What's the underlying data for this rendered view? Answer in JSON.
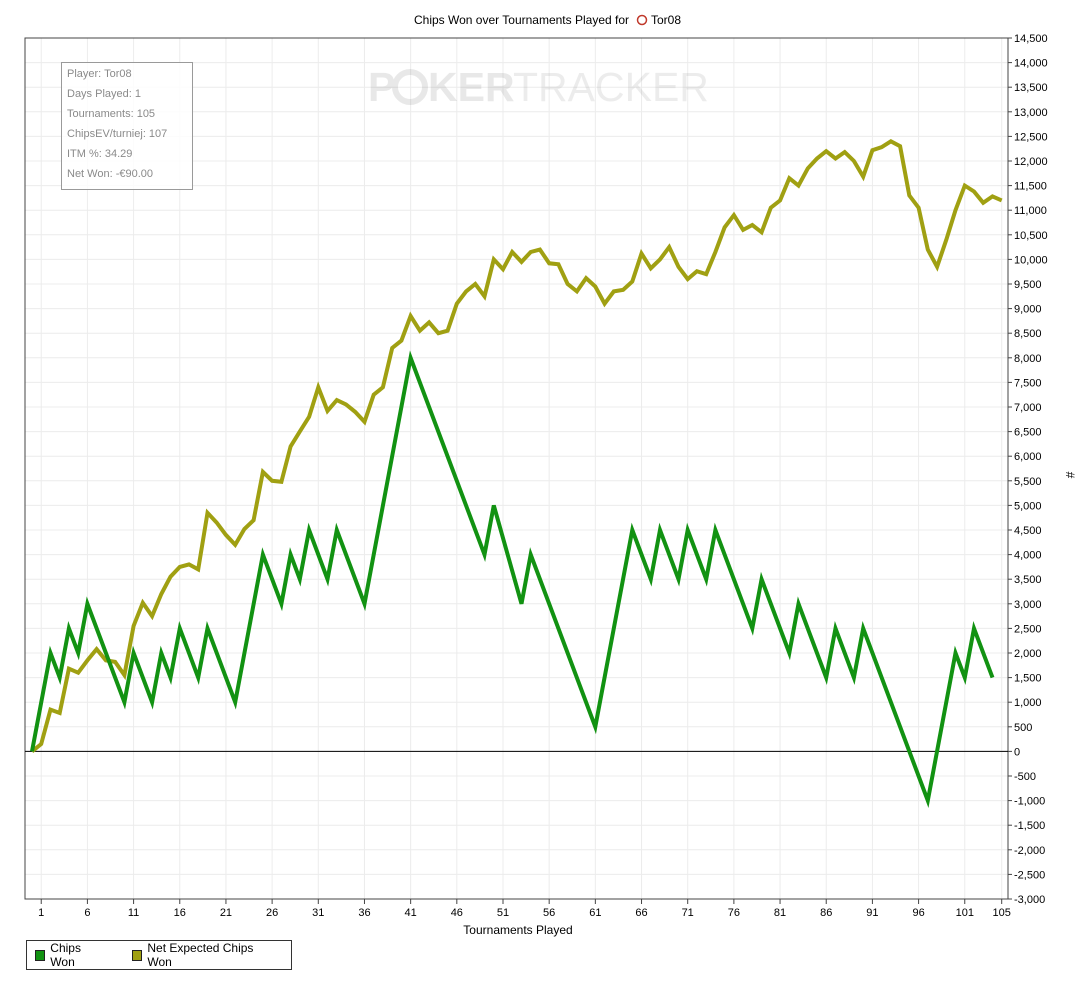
{
  "chart_data": {
    "type": "line",
    "title": "Chips Won over Tournaments Played for",
    "player": "Tor08",
    "xlabel": "Tournaments Played",
    "ylabel": "#",
    "xlim": [
      0,
      105
    ],
    "ylim": [
      -3000,
      14500
    ],
    "x_ticks": [
      1,
      6,
      11,
      16,
      21,
      26,
      31,
      36,
      41,
      46,
      51,
      56,
      61,
      66,
      71,
      76,
      81,
      86,
      91,
      96,
      101,
      105
    ],
    "y_ticks": [
      14500,
      14000,
      13500,
      13000,
      12500,
      12000,
      11500,
      11000,
      10500,
      10000,
      9500,
      9000,
      8500,
      8000,
      7500,
      7000,
      6500,
      6000,
      5500,
      5000,
      4500,
      4000,
      3500,
      3000,
      2500,
      2000,
      1500,
      1000,
      500,
      0,
      -500,
      -1000,
      -1500,
      -2000,
      -2500,
      -3000
    ],
    "y_tick_labels": [
      "14,500",
      "14,000",
      "13,500",
      "13,000",
      "12,500",
      "12,000",
      "11,500",
      "11,000",
      "10,500",
      "10,000",
      "9,500",
      "9,000",
      "8,500",
      "8,000",
      "7,500",
      "7,000",
      "6,500",
      "6,000",
      "5,500",
      "5,000",
      "4,500",
      "4,000",
      "3,500",
      "3,000",
      "2,500",
      "2,000",
      "1,500",
      "1,000",
      "500",
      "0",
      "-500",
      "-1,000",
      "-1,500",
      "-2,000",
      "-2,500",
      "-3,000"
    ],
    "grid": true,
    "legend_position": "bottom-left",
    "series": [
      {
        "name": "Chips Won",
        "color": "#129212",
        "points": [
          [
            0,
            0
          ],
          [
            2,
            2000
          ],
          [
            3,
            1500
          ],
          [
            4,
            2500
          ],
          [
            5,
            2000
          ],
          [
            6,
            3000
          ],
          [
            10,
            1000
          ],
          [
            11,
            2000
          ],
          [
            13,
            1000
          ],
          [
            14,
            2000
          ],
          [
            15,
            1500
          ],
          [
            16,
            2500
          ],
          [
            18,
            1500
          ],
          [
            19,
            2500
          ],
          [
            22,
            1000
          ],
          [
            25,
            4000
          ],
          [
            27,
            3000
          ],
          [
            28,
            4000
          ],
          [
            29,
            3500
          ],
          [
            30,
            4500
          ],
          [
            32,
            3500
          ],
          [
            33,
            4500
          ],
          [
            36,
            3000
          ],
          [
            41,
            8000
          ],
          [
            49,
            4000
          ],
          [
            50,
            5000
          ],
          [
            53,
            3000
          ],
          [
            54,
            4000
          ],
          [
            61,
            500
          ],
          [
            65,
            4500
          ],
          [
            67,
            3500
          ],
          [
            68,
            4500
          ],
          [
            70,
            3500
          ],
          [
            71,
            4500
          ],
          [
            73,
            3500
          ],
          [
            74,
            4500
          ],
          [
            78,
            2500
          ],
          [
            79,
            3500
          ],
          [
            82,
            2000
          ],
          [
            83,
            3000
          ],
          [
            86,
            1500
          ],
          [
            87,
            2500
          ],
          [
            89,
            1500
          ],
          [
            90,
            2500
          ],
          [
            97,
            -1000
          ],
          [
            100,
            2000
          ],
          [
            101,
            1500
          ],
          [
            102,
            2500
          ],
          [
            104,
            1500
          ]
        ]
      },
      {
        "name": "Net Expected Chips Won",
        "color": "#a0a012",
        "points": [
          [
            0,
            0
          ],
          [
            1,
            150
          ],
          [
            2,
            850
          ],
          [
            3,
            780
          ],
          [
            4,
            1680
          ],
          [
            5,
            1600
          ],
          [
            6,
            1850
          ],
          [
            7,
            2080
          ],
          [
            8,
            1850
          ],
          [
            9,
            1820
          ],
          [
            10,
            1550
          ],
          [
            11,
            2550
          ],
          [
            12,
            3020
          ],
          [
            13,
            2750
          ],
          [
            14,
            3200
          ],
          [
            15,
            3550
          ],
          [
            16,
            3750
          ],
          [
            17,
            3800
          ],
          [
            18,
            3700
          ],
          [
            19,
            4850
          ],
          [
            20,
            4650
          ],
          [
            21,
            4400
          ],
          [
            22,
            4200
          ],
          [
            23,
            4520
          ],
          [
            24,
            4700
          ],
          [
            25,
            5680
          ],
          [
            26,
            5500
          ],
          [
            27,
            5480
          ],
          [
            28,
            6200
          ],
          [
            29,
            6500
          ],
          [
            30,
            6800
          ],
          [
            31,
            7400
          ],
          [
            32,
            6920
          ],
          [
            33,
            7140
          ],
          [
            34,
            7050
          ],
          [
            35,
            6900
          ],
          [
            36,
            6700
          ],
          [
            37,
            7250
          ],
          [
            38,
            7400
          ],
          [
            39,
            8200
          ],
          [
            40,
            8350
          ],
          [
            41,
            8850
          ],
          [
            42,
            8550
          ],
          [
            43,
            8720
          ],
          [
            44,
            8500
          ],
          [
            45,
            8550
          ],
          [
            46,
            9100
          ],
          [
            47,
            9350
          ],
          [
            48,
            9500
          ],
          [
            49,
            9250
          ],
          [
            50,
            10000
          ],
          [
            51,
            9800
          ],
          [
            52,
            10150
          ],
          [
            53,
            9950
          ],
          [
            54,
            10150
          ],
          [
            55,
            10200
          ],
          [
            56,
            9920
          ],
          [
            57,
            9900
          ],
          [
            58,
            9500
          ],
          [
            59,
            9350
          ],
          [
            60,
            9620
          ],
          [
            61,
            9450
          ],
          [
            62,
            9100
          ],
          [
            63,
            9350
          ],
          [
            64,
            9380
          ],
          [
            65,
            9550
          ],
          [
            66,
            10120
          ],
          [
            67,
            9820
          ],
          [
            68,
            10000
          ],
          [
            69,
            10250
          ],
          [
            70,
            9850
          ],
          [
            71,
            9600
          ],
          [
            72,
            9760
          ],
          [
            73,
            9700
          ],
          [
            74,
            10150
          ],
          [
            75,
            10650
          ],
          [
            76,
            10900
          ],
          [
            77,
            10600
          ],
          [
            78,
            10700
          ],
          [
            79,
            10550
          ],
          [
            80,
            11050
          ],
          [
            81,
            11200
          ],
          [
            82,
            11650
          ],
          [
            83,
            11500
          ],
          [
            84,
            11850
          ],
          [
            85,
            12050
          ],
          [
            86,
            12200
          ],
          [
            87,
            12050
          ],
          [
            88,
            12180
          ],
          [
            89,
            12000
          ],
          [
            90,
            11680
          ],
          [
            91,
            12220
          ],
          [
            92,
            12280
          ],
          [
            93,
            12400
          ],
          [
            94,
            12300
          ],
          [
            95,
            11300
          ],
          [
            96,
            11050
          ],
          [
            97,
            10200
          ],
          [
            98,
            9850
          ],
          [
            99,
            10400
          ],
          [
            100,
            11000
          ],
          [
            101,
            11500
          ],
          [
            102,
            11380
          ],
          [
            103,
            11150
          ],
          [
            104,
            11280
          ],
          [
            105,
            11200
          ]
        ]
      }
    ]
  },
  "stats": {
    "player": "Player: Tor08",
    "days_played": "Days Played: 1",
    "tournaments": "Tournaments: 105",
    "chips_ev": "ChipsEV/turniej: 107",
    "itm": "ITM %: 34.29",
    "net_won": "Net Won: -€90.00"
  },
  "watermark": {
    "part1": "P",
    "part2": "KER",
    "part3": "TRACKER"
  },
  "legend": {
    "item1": "Chips Won",
    "item2": "Net Expected Chips Won"
  }
}
